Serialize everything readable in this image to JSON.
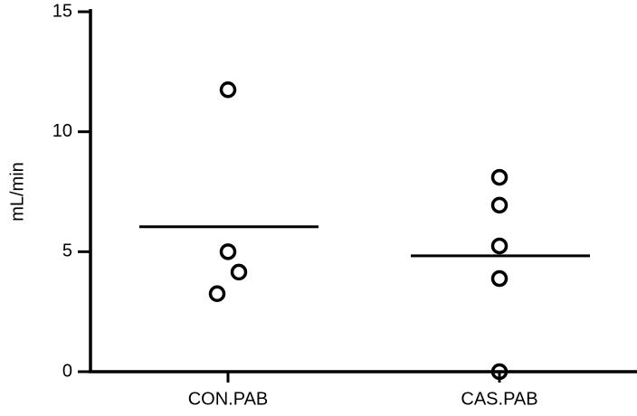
{
  "chart_data": {
    "type": "dot",
    "y_label": "mL/min",
    "categories": [
      "CON.PAB",
      "CAS.PAB"
    ],
    "values": [
      [
        11.75,
        5.0,
        4.15,
        3.25
      ],
      [
        8.1,
        6.94,
        5.24,
        3.88,
        0
      ]
    ],
    "means": [
      6.04,
      4.83
    ],
    "color": "#000000",
    "ylim": [
      0,
      15
    ],
    "yticks": [
      0,
      5,
      10,
      15
    ],
    "grid": false
  }
}
